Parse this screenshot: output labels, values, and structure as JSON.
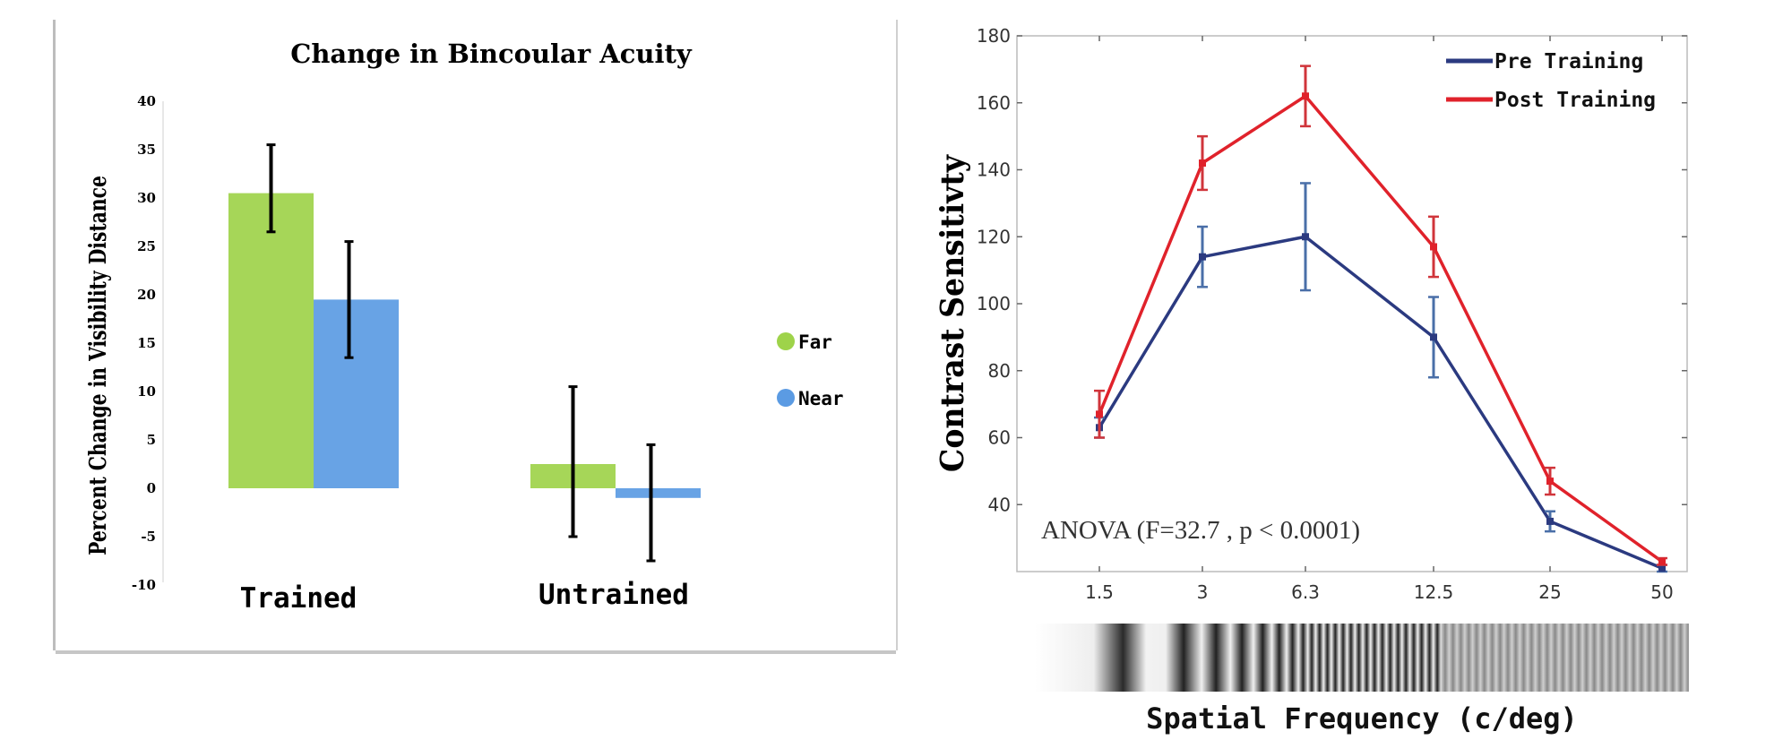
{
  "chart_data": [
    {
      "type": "bar",
      "title": "Change in Bincoular Acuity",
      "ylabel": "Percent Change in Visibility Distance",
      "xlabel": "",
      "ylim": [
        -10,
        40
      ],
      "yticks": [
        -10,
        -5,
        0,
        5,
        10,
        15,
        20,
        25,
        30,
        35,
        40
      ],
      "categories": [
        "Trained",
        "Untrained"
      ],
      "series": [
        {
          "name": "Far",
          "color": "#9ed34a",
          "values": [
            30.5,
            2.5
          ],
          "err_low": [
            26.5,
            -5
          ],
          "err_high": [
            35.5,
            10.5
          ]
        },
        {
          "name": "Near",
          "color": "#5b9be3",
          "values": [
            19.5,
            -1
          ],
          "err_low": [
            13.5,
            -7.5
          ],
          "err_high": [
            25.5,
            4.5
          ]
        }
      ],
      "legend": [
        "Far",
        "Near"
      ],
      "legend_position": "right"
    },
    {
      "type": "line",
      "title": "",
      "ylabel": "Contrast Sensitivty",
      "xlabel": "Spatial Frequency (c/deg)",
      "ylim": [
        20,
        180
      ],
      "yticks": [
        40,
        60,
        80,
        100,
        120,
        140,
        160,
        180
      ],
      "x": [
        "1.5",
        "3",
        "6.3",
        "12.5",
        "25",
        "50"
      ],
      "series": [
        {
          "name": "Pre Training",
          "color": "#2b3a80",
          "values": [
            63,
            114,
            120,
            90,
            35,
            21
          ],
          "err": [
            3,
            9,
            16,
            12,
            3,
            1
          ]
        },
        {
          "name": "Post Training",
          "color": "#e0222b",
          "values": [
            67,
            142,
            162,
            117,
            47,
            23
          ],
          "err": [
            7,
            8,
            9,
            9,
            4,
            1
          ]
        }
      ],
      "legend_position": "top-right",
      "annotation": "ANOVA (F=32.7 , p < 0.0001)"
    }
  ]
}
